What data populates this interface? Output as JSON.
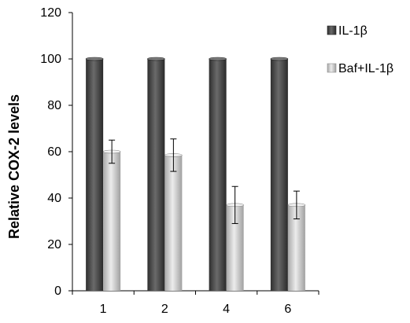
{
  "chart_data": {
    "type": "bar",
    "title": "",
    "xlabel": "",
    "ylabel": "Relative COX-2 levels",
    "categories": [
      "1",
      "2",
      "4",
      "6"
    ],
    "ylim": [
      0,
      120
    ],
    "yticks": [
      0,
      20,
      40,
      60,
      80,
      100,
      120
    ],
    "grid": false,
    "legend_position": "top-right",
    "series": [
      {
        "name": "IL-1β",
        "values": [
          100,
          100,
          100,
          100
        ],
        "errors": [
          0,
          0,
          0,
          0
        ],
        "color": "#4a4a4a"
      },
      {
        "name": "Baf+IL-1β",
        "values": [
          60,
          58.5,
          37,
          37
        ],
        "errors": [
          5,
          7,
          8,
          6
        ],
        "color": "#c8c8c8"
      }
    ]
  }
}
